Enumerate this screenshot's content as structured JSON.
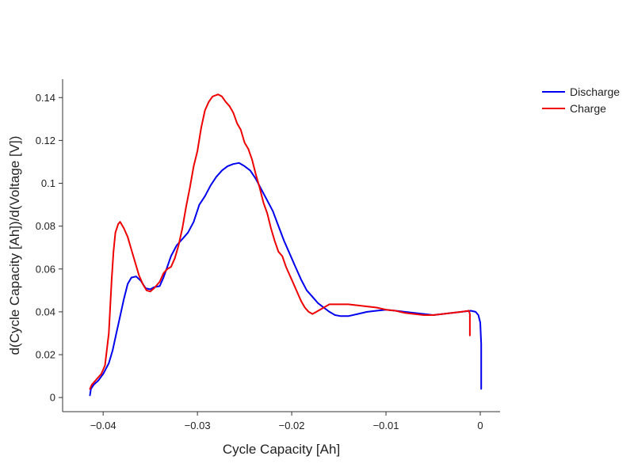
{
  "chart_data": {
    "type": "line",
    "title": "",
    "xlabel": "Cycle Capacity [Ah]",
    "ylabel": "d(Cycle Capacity [Ah])/d(Voltage [V])",
    "xlim": [
      -0.0443,
      0.0021
    ],
    "ylim": [
      -0.0066,
      0.1486
    ],
    "x_ticks": [
      -0.04,
      -0.03,
      -0.02,
      -0.01,
      0
    ],
    "x_tick_labels": [
      "−0.04",
      "−0.03",
      "−0.02",
      "−0.01",
      "0"
    ],
    "y_ticks": [
      0,
      0.02,
      0.04,
      0.06,
      0.08,
      0.1,
      0.12,
      0.14
    ],
    "y_tick_labels": [
      "0",
      "0.02",
      "0.04",
      "0.06",
      "0.08",
      "0.1",
      "0.12",
      "0.14"
    ],
    "grid": false,
    "legend_position": "top-right",
    "series": [
      {
        "name": "Discharge",
        "color": "#0000ee",
        "points": [
          [
            -0.0414,
            0.001
          ],
          [
            -0.0413,
            0.004
          ],
          [
            -0.041,
            0.006
          ],
          [
            -0.0405,
            0.008
          ],
          [
            -0.04,
            0.011
          ],
          [
            -0.0394,
            0.016
          ],
          [
            -0.039,
            0.022
          ],
          [
            -0.0386,
            0.03
          ],
          [
            -0.0382,
            0.038
          ],
          [
            -0.0378,
            0.046
          ],
          [
            -0.0374,
            0.053
          ],
          [
            -0.037,
            0.056
          ],
          [
            -0.0365,
            0.0565
          ],
          [
            -0.036,
            0.0545
          ],
          [
            -0.0355,
            0.051
          ],
          [
            -0.035,
            0.0505
          ],
          [
            -0.0346,
            0.0515
          ],
          [
            -0.034,
            0.052
          ],
          [
            -0.0336,
            0.056
          ],
          [
            -0.0332,
            0.061
          ],
          [
            -0.0328,
            0.066
          ],
          [
            -0.0322,
            0.071
          ],
          [
            -0.0316,
            0.074
          ],
          [
            -0.031,
            0.077
          ],
          [
            -0.0304,
            0.082
          ],
          [
            -0.0298,
            0.09
          ],
          [
            -0.0292,
            0.094
          ],
          [
            -0.0286,
            0.099
          ],
          [
            -0.028,
            0.103
          ],
          [
            -0.0274,
            0.106
          ],
          [
            -0.0268,
            0.108
          ],
          [
            -0.0262,
            0.109
          ],
          [
            -0.0256,
            0.1095
          ],
          [
            -0.025,
            0.108
          ],
          [
            -0.0244,
            0.106
          ],
          [
            -0.0238,
            0.102
          ],
          [
            -0.0232,
            0.097
          ],
          [
            -0.0226,
            0.092
          ],
          [
            -0.022,
            0.087
          ],
          [
            -0.0214,
            0.08
          ],
          [
            -0.0208,
            0.073
          ],
          [
            -0.0202,
            0.067
          ],
          [
            -0.0196,
            0.061
          ],
          [
            -0.019,
            0.055
          ],
          [
            -0.0184,
            0.05
          ],
          [
            -0.0178,
            0.047
          ],
          [
            -0.0172,
            0.044
          ],
          [
            -0.0166,
            0.042
          ],
          [
            -0.016,
            0.04
          ],
          [
            -0.0154,
            0.0385
          ],
          [
            -0.0148,
            0.038
          ],
          [
            -0.014,
            0.038
          ],
          [
            -0.013,
            0.039
          ],
          [
            -0.012,
            0.04
          ],
          [
            -0.011,
            0.0405
          ],
          [
            -0.01,
            0.041
          ],
          [
            -0.009,
            0.0405
          ],
          [
            -0.008,
            0.04
          ],
          [
            -0.007,
            0.0395
          ],
          [
            -0.006,
            0.039
          ],
          [
            -0.005,
            0.0385
          ],
          [
            -0.004,
            0.039
          ],
          [
            -0.003,
            0.0395
          ],
          [
            -0.002,
            0.04
          ],
          [
            -0.001,
            0.0405
          ],
          [
            -0.0005,
            0.04
          ],
          [
            -0.0002,
            0.0385
          ],
          [
            0.0,
            0.035
          ],
          [
            0.0001,
            0.025
          ],
          [
            0.0001,
            0.01
          ],
          [
            0.0001,
            0.004
          ]
        ]
      },
      {
        "name": "Charge",
        "color": "#ee0000",
        "points": [
          [
            -0.0414,
            0.004
          ],
          [
            -0.0412,
            0.006
          ],
          [
            -0.0408,
            0.008
          ],
          [
            -0.0402,
            0.011
          ],
          [
            -0.0398,
            0.015
          ],
          [
            -0.0394,
            0.03
          ],
          [
            -0.0391,
            0.055
          ],
          [
            -0.0389,
            0.068
          ],
          [
            -0.0387,
            0.077
          ],
          [
            -0.0384,
            0.081
          ],
          [
            -0.0382,
            0.082
          ],
          [
            -0.0378,
            0.079
          ],
          [
            -0.0374,
            0.075
          ],
          [
            -0.037,
            0.069
          ],
          [
            -0.0366,
            0.063
          ],
          [
            -0.0362,
            0.057
          ],
          [
            -0.0358,
            0.053
          ],
          [
            -0.0354,
            0.05
          ],
          [
            -0.035,
            0.0495
          ],
          [
            -0.0346,
            0.051
          ],
          [
            -0.034,
            0.054
          ],
          [
            -0.0336,
            0.058
          ],
          [
            -0.0332,
            0.06
          ],
          [
            -0.0328,
            0.061
          ],
          [
            -0.0324,
            0.065
          ],
          [
            -0.032,
            0.071
          ],
          [
            -0.0316,
            0.079
          ],
          [
            -0.0312,
            0.089
          ],
          [
            -0.0308,
            0.098
          ],
          [
            -0.0304,
            0.108
          ],
          [
            -0.03,
            0.115
          ],
          [
            -0.0296,
            0.126
          ],
          [
            -0.0292,
            0.134
          ],
          [
            -0.0288,
            0.138
          ],
          [
            -0.0284,
            0.1405
          ],
          [
            -0.0278,
            0.1415
          ],
          [
            -0.0274,
            0.1405
          ],
          [
            -0.027,
            0.138
          ],
          [
            -0.0266,
            0.136
          ],
          [
            -0.0262,
            0.133
          ],
          [
            -0.0258,
            0.128
          ],
          [
            -0.0254,
            0.125
          ],
          [
            -0.025,
            0.119
          ],
          [
            -0.0246,
            0.116
          ],
          [
            -0.0242,
            0.111
          ],
          [
            -0.0238,
            0.104
          ],
          [
            -0.0234,
            0.098
          ],
          [
            -0.023,
            0.091
          ],
          [
            -0.0226,
            0.086
          ],
          [
            -0.0222,
            0.079
          ],
          [
            -0.0218,
            0.073
          ],
          [
            -0.0214,
            0.068
          ],
          [
            -0.021,
            0.066
          ],
          [
            -0.0206,
            0.061
          ],
          [
            -0.0202,
            0.057
          ],
          [
            -0.0198,
            0.053
          ],
          [
            -0.0194,
            0.049
          ],
          [
            -0.019,
            0.045
          ],
          [
            -0.0186,
            0.042
          ],
          [
            -0.0182,
            0.04
          ],
          [
            -0.0178,
            0.039
          ],
          [
            -0.017,
            0.041
          ],
          [
            -0.016,
            0.0435
          ],
          [
            -0.015,
            0.0435
          ],
          [
            -0.014,
            0.0435
          ],
          [
            -0.013,
            0.043
          ],
          [
            -0.012,
            0.0425
          ],
          [
            -0.011,
            0.042
          ],
          [
            -0.01,
            0.041
          ],
          [
            -0.009,
            0.0405
          ],
          [
            -0.008,
            0.0395
          ],
          [
            -0.007,
            0.039
          ],
          [
            -0.006,
            0.0385
          ],
          [
            -0.005,
            0.0385
          ],
          [
            -0.004,
            0.039
          ],
          [
            -0.003,
            0.0395
          ],
          [
            -0.002,
            0.04
          ],
          [
            -0.0012,
            0.0405
          ],
          [
            -0.0011,
            0.039
          ],
          [
            -0.0011,
            0.034
          ],
          [
            -0.0011,
            0.029
          ]
        ]
      }
    ]
  }
}
